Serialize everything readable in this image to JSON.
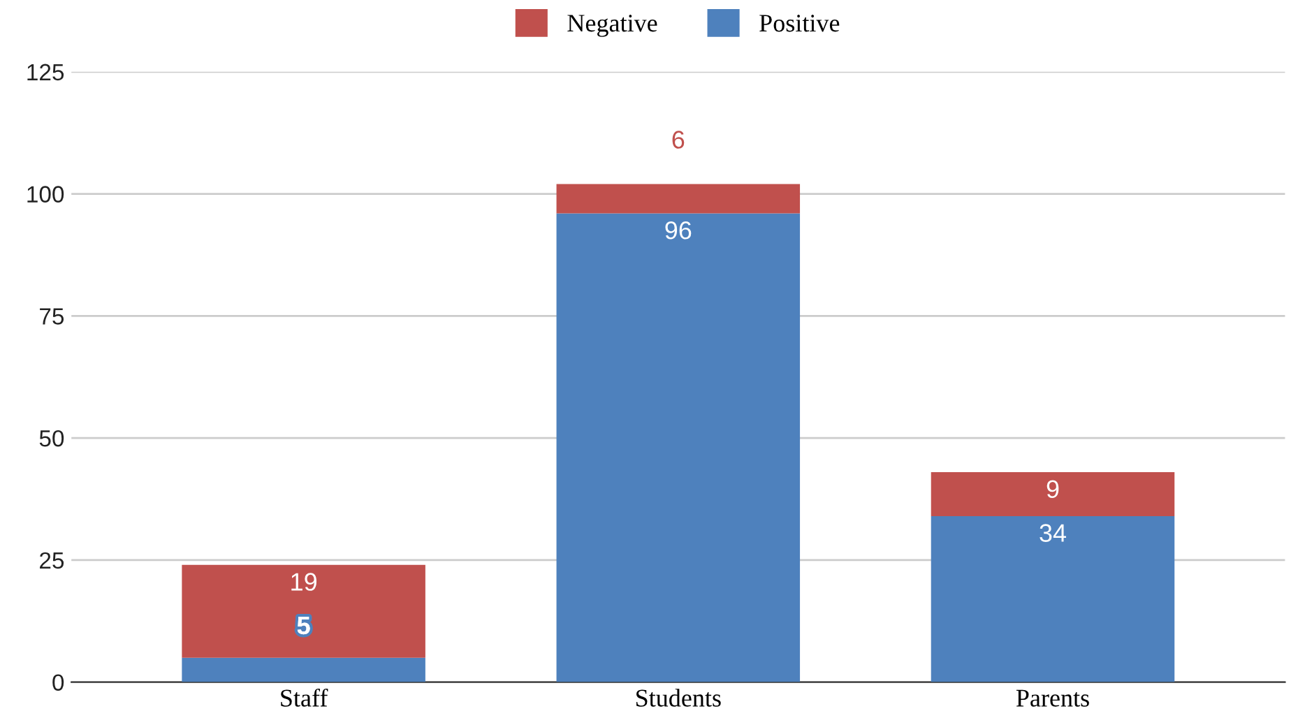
{
  "chart_data": {
    "type": "bar",
    "stacked": true,
    "categories": [
      "Staff",
      "Students",
      "Parents"
    ],
    "series": [
      {
        "name": "Positive",
        "color": "#4e81bd",
        "values": [
          5,
          96,
          34
        ]
      },
      {
        "name": "Negative",
        "color": "#c0504d",
        "values": [
          19,
          6,
          9
        ]
      }
    ],
    "ylim": [
      0,
      125
    ],
    "yticks": [
      0,
      25,
      50,
      75,
      100,
      125
    ],
    "grid": "y",
    "legend": "top",
    "data_labels": true
  }
}
